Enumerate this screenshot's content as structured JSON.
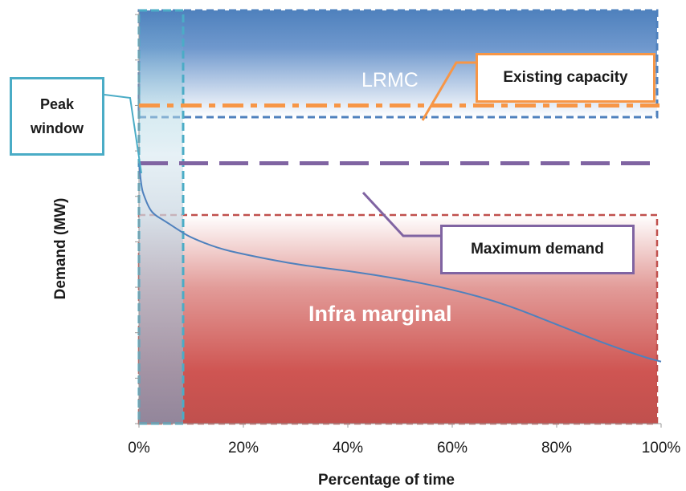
{
  "chart_data": {
    "type": "line",
    "xlabel": "Percentage of time",
    "ylabel": "Demand (MW)",
    "x_tick_labels": [
      "0%",
      "20%",
      "40%",
      "60%",
      "80%",
      "100%"
    ],
    "xlim": [
      0,
      100
    ],
    "ylim": [
      0,
      100
    ],
    "y_tick_labels_shown": false,
    "series": [
      {
        "values": [
          [
            0,
            63
          ],
          [
            0.5,
            57
          ],
          [
            1,
            55
          ],
          [
            2,
            52
          ],
          [
            3,
            50.5
          ],
          [
            5,
            49
          ],
          [
            8,
            46.5
          ],
          [
            10,
            45
          ],
          [
            15,
            42.5
          ],
          [
            20,
            41
          ],
          [
            30,
            38.5
          ],
          [
            40,
            37
          ],
          [
            50,
            35
          ],
          [
            60,
            32.5
          ],
          [
            70,
            29
          ],
          [
            80,
            24
          ],
          [
            90,
            19
          ],
          [
            97,
            16
          ],
          [
            100,
            15
          ]
        ],
        "color": "#4f81bd"
      }
    ],
    "reference_lines": [
      {
        "label": "Existing capacity",
        "y": 77,
        "style": "dash-dot",
        "color": "#f79646"
      },
      {
        "label": "Maximum demand",
        "y": 63,
        "style": "long-dash",
        "color": "#8064a2"
      }
    ],
    "regions": [
      {
        "label": "LRMC",
        "x": [
          0,
          100
        ],
        "y": [
          77,
          100
        ],
        "color": "#4f81bd"
      },
      {
        "label": "Infra marginal",
        "x": [
          0,
          100
        ],
        "y": [
          0,
          56
        ],
        "color": "#c0504d"
      },
      {
        "label": "Peak window",
        "x": [
          0,
          8
        ],
        "y": [
          0,
          100
        ],
        "color": "#4bacc6"
      }
    ]
  },
  "annotations": {
    "peak_window": "Peak window",
    "existing_capacity": "Existing capacity",
    "maximum_demand": "Maximum demand",
    "lrmc": "LRMC",
    "infra_marginal": "Infra marginal"
  },
  "colors": {
    "lrmc": "#4f81bd",
    "infra": "#c0504d",
    "peak": "#4bacc6",
    "capacity": "#f79646",
    "max_demand": "#8064a2",
    "load_curve": "#4f81bd"
  }
}
